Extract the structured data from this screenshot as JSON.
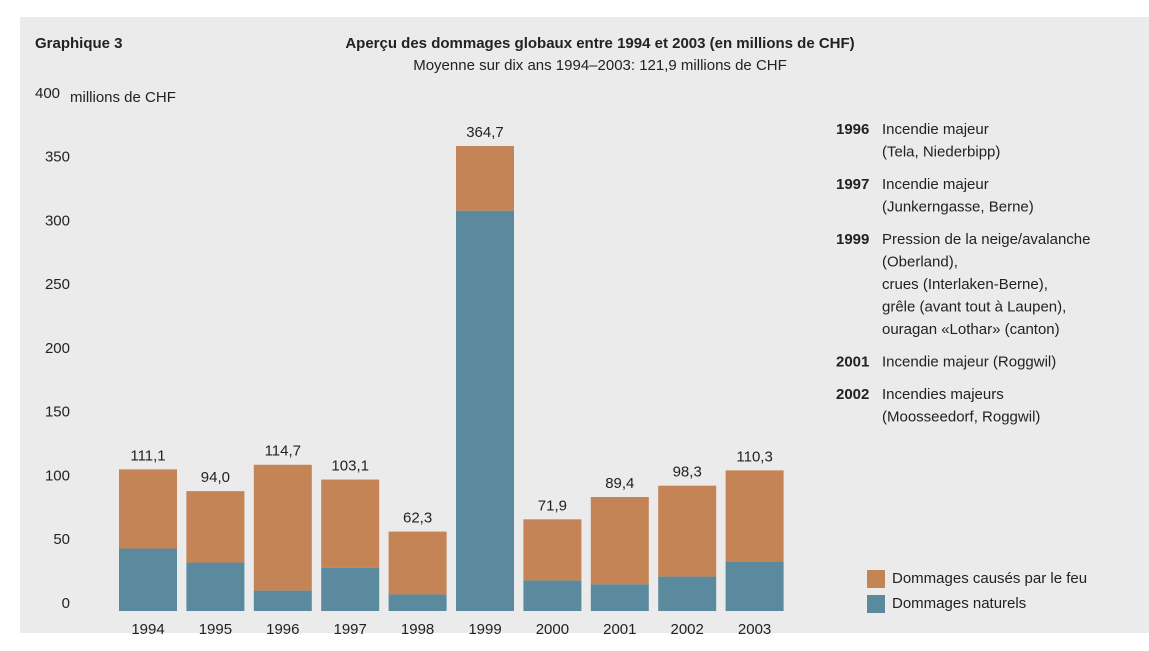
{
  "chart_data": {
    "type": "stacked_bar",
    "label": "Graphique 3",
    "title": "Aperçu des dommages globaux entre 1994 et 2003 (en millions de CHF)",
    "subtitle": "Moyenne sur dix ans 1994–2003: 121,9 millions de CHF",
    "ylabel": "millions de CHF",
    "categories": [
      "1994",
      "1995",
      "1996",
      "1997",
      "1998",
      "1999",
      "2000",
      "2001",
      "2002",
      "2003"
    ],
    "series": [
      {
        "name": "Dommages naturels",
        "color": "#5b8a9f",
        "values": [
          49,
          38,
          16,
          34,
          13,
          314,
          24,
          21,
          27,
          39
        ]
      },
      {
        "name": "Dommages causés par le feu",
        "color": "#c48455",
        "values": [
          62.1,
          56,
          98.7,
          69.1,
          49.3,
          50.7,
          47.9,
          68.4,
          71.3,
          71.3
        ]
      }
    ],
    "totals": {
      "values": [
        111.1,
        94.0,
        114.7,
        103.1,
        62.3,
        364.7,
        71.9,
        89.4,
        98.3,
        110.3
      ],
      "value_labels": [
        "111,1",
        "94,0",
        "114,7",
        "103,1",
        "62,3",
        "364,7",
        "71,9",
        "89,4",
        "98,3",
        "110,3"
      ]
    },
    "ylim": [
      0,
      400
    ],
    "yticks": [
      0,
      50,
      100,
      150,
      200,
      250,
      300,
      350,
      400
    ],
    "annotations": [
      {
        "year": "1996",
        "lines": [
          "Incendie majeur",
          "(Tela, Niederbipp)"
        ]
      },
      {
        "year": "1997",
        "lines": [
          "Incendie majeur",
          "(Junkerngasse, Berne)"
        ]
      },
      {
        "year": "1999",
        "lines": [
          "Pression de la neige/avalanche",
          "(Oberland),",
          "crues (Interlaken-Berne),",
          "grêle (avant tout à Laupen),",
          "ouragan «Lothar» (canton)"
        ]
      },
      {
        "year": "2001",
        "lines": [
          "Incendie majeur (Roggwil)"
        ]
      },
      {
        "year": "2002",
        "lines": [
          "Incendies majeurs",
          "(Moosseedorf, Roggwil)"
        ]
      }
    ]
  }
}
